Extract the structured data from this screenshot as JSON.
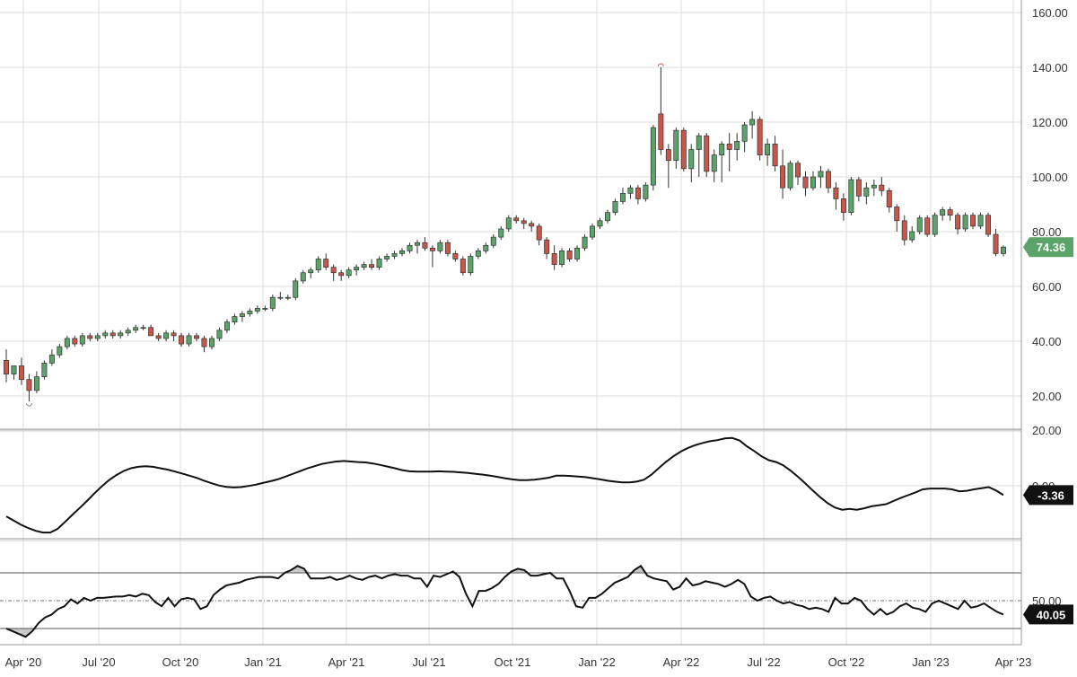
{
  "chart_data": {
    "type": "candlestick",
    "x_ticks": [
      "Apr '20",
      "Jul '20",
      "Oct '20",
      "Jan '21",
      "Apr '21",
      "Jul '21",
      "Oct '21",
      "Jan '22",
      "Apr '22",
      "Jul '22",
      "Oct '22",
      "Jan '23",
      "Apr '23"
    ],
    "price_panel": {
      "y_ticks": [
        "20.00",
        "40.00",
        "60.00",
        "80.00",
        "100.00",
        "120.00",
        "140.00",
        "160.00"
      ],
      "ylim": [
        10,
        160
      ],
      "last_value": "74.36",
      "candles": [
        [
          33,
          37,
          25,
          28
        ],
        [
          28,
          31,
          26,
          31
        ],
        [
          31,
          34,
          24,
          26
        ],
        [
          26,
          28,
          18,
          22
        ],
        [
          22,
          29,
          21,
          27
        ],
        [
          27,
          33,
          26,
          32
        ],
        [
          32,
          37,
          31,
          35
        ],
        [
          35,
          39,
          34,
          38
        ],
        [
          38,
          42,
          37,
          41
        ],
        [
          41,
          42,
          38,
          39
        ],
        [
          39,
          43,
          38,
          42
        ],
        [
          42,
          43,
          40,
          41
        ],
        [
          41,
          43,
          40,
          42
        ],
        [
          42,
          44,
          41,
          43
        ],
        [
          43,
          44,
          41,
          42
        ],
        [
          42,
          44,
          41,
          43
        ],
        [
          43,
          45,
          42,
          44
        ],
        [
          44,
          46,
          43,
          45
        ],
        [
          45,
          46,
          44,
          45
        ],
        [
          45,
          46,
          42,
          42
        ],
        [
          42,
          43,
          40,
          41
        ],
        [
          41,
          44,
          40,
          43
        ],
        [
          43,
          44,
          40,
          42
        ],
        [
          42,
          43,
          38,
          39
        ],
        [
          39,
          43,
          38,
          42
        ],
        [
          42,
          43,
          40,
          41
        ],
        [
          41,
          42,
          36,
          38
        ],
        [
          38,
          42,
          37,
          41
        ],
        [
          41,
          45,
          40,
          44
        ],
        [
          44,
          48,
          43,
          47
        ],
        [
          47,
          50,
          46,
          49
        ],
        [
          49,
          51,
          47,
          50
        ],
        [
          50,
          52,
          49,
          51
        ],
        [
          51,
          53,
          50,
          52
        ],
        [
          52,
          53,
          51,
          52
        ],
        [
          52,
          57,
          51,
          56
        ],
        [
          56,
          58,
          55,
          56
        ],
        [
          56,
          57,
          55,
          56
        ],
        [
          56,
          63,
          55,
          62
        ],
        [
          62,
          66,
          61,
          65
        ],
        [
          65,
          67,
          63,
          66
        ],
        [
          66,
          71,
          65,
          70
        ],
        [
          70,
          72,
          66,
          67
        ],
        [
          67,
          68,
          62,
          65
        ],
        [
          65,
          66,
          62,
          64
        ],
        [
          64,
          67,
          63,
          66
        ],
        [
          66,
          68,
          64,
          67
        ],
        [
          67,
          69,
          66,
          68
        ],
        [
          68,
          70,
          66,
          67
        ],
        [
          67,
          71,
          66,
          70
        ],
        [
          70,
          72,
          69,
          71
        ],
        [
          71,
          73,
          70,
          72
        ],
        [
          72,
          74,
          71,
          73
        ],
        [
          73,
          76,
          72,
          75
        ],
        [
          75,
          77,
          72,
          76
        ],
        [
          76,
          78,
          73,
          74
        ],
        [
          74,
          75,
          67,
          73
        ],
        [
          73,
          77,
          72,
          76
        ],
        [
          76,
          77,
          71,
          72
        ],
        [
          72,
          73,
          69,
          70
        ],
        [
          70,
          71,
          64,
          65
        ],
        [
          65,
          72,
          64,
          71
        ],
        [
          71,
          74,
          70,
          73
        ],
        [
          73,
          76,
          72,
          75
        ],
        [
          75,
          79,
          74,
          78
        ],
        [
          78,
          82,
          77,
          81
        ],
        [
          81,
          86,
          80,
          85
        ],
        [
          85,
          86,
          83,
          84
        ],
        [
          84,
          85,
          81,
          83
        ],
        [
          83,
          84,
          80,
          82
        ],
        [
          82,
          83,
          75,
          77
        ],
        [
          77,
          78,
          70,
          72
        ],
        [
          72,
          75,
          66,
          68
        ],
        [
          68,
          74,
          67,
          73
        ],
        [
          73,
          74,
          69,
          70
        ],
        [
          70,
          75,
          69,
          74
        ],
        [
          74,
          79,
          73,
          78
        ],
        [
          78,
          83,
          77,
          82
        ],
        [
          82,
          85,
          81,
          84
        ],
        [
          84,
          88,
          83,
          87
        ],
        [
          87,
          92,
          86,
          91
        ],
        [
          91,
          96,
          90,
          94
        ],
        [
          94,
          97,
          92,
          96
        ],
        [
          96,
          97,
          90,
          92
        ],
        [
          92,
          98,
          91,
          97
        ],
        [
          97,
          119,
          95,
          118
        ],
        [
          123,
          140,
          108,
          110
        ],
        [
          110,
          112,
          96,
          106
        ],
        [
          106,
          118,
          103,
          117
        ],
        [
          117,
          118,
          102,
          103
        ],
        [
          103,
          112,
          98,
          110
        ],
        [
          110,
          116,
          100,
          115
        ],
        [
          115,
          116,
          100,
          102
        ],
        [
          102,
          110,
          98,
          108
        ],
        [
          108,
          113,
          98,
          112
        ],
        [
          112,
          116,
          102,
          110
        ],
        [
          110,
          116,
          106,
          113
        ],
        [
          113,
          120,
          109,
          119
        ],
        [
          119,
          124,
          114,
          121
        ],
        [
          121,
          122,
          106,
          108
        ],
        [
          108,
          114,
          104,
          112
        ],
        [
          112,
          115,
          102,
          104
        ],
        [
          104,
          110,
          92,
          96
        ],
        [
          96,
          106,
          95,
          105
        ],
        [
          105,
          106,
          97,
          100
        ],
        [
          100,
          102,
          93,
          96
        ],
        [
          96,
          102,
          95,
          100
        ],
        [
          100,
          104,
          96,
          102
        ],
        [
          102,
          103,
          94,
          96
        ],
        [
          96,
          98,
          88,
          92
        ],
        [
          92,
          94,
          84,
          87
        ],
        [
          87,
          100,
          86,
          99
        ],
        [
          99,
          100,
          91,
          93
        ],
        [
          93,
          98,
          90,
          96
        ],
        [
          96,
          99,
          93,
          97
        ],
        [
          97,
          100,
          93,
          95
        ],
        [
          95,
          96,
          87,
          89
        ],
        [
          89,
          90,
          80,
          84
        ],
        [
          84,
          86,
          75,
          77
        ],
        [
          77,
          82,
          76,
          80
        ],
        [
          80,
          86,
          79,
          85
        ],
        [
          85,
          86,
          78,
          79
        ],
        [
          79,
          87,
          78,
          86
        ],
        [
          86,
          89,
          84,
          88
        ],
        [
          88,
          89,
          84,
          86
        ],
        [
          86,
          87,
          79,
          81
        ],
        [
          81,
          87,
          80,
          86
        ],
        [
          86,
          87,
          81,
          82
        ],
        [
          82,
          87,
          81,
          86
        ],
        [
          86,
          87,
          78,
          79
        ],
        [
          79,
          81,
          71,
          72
        ],
        [
          72,
          75,
          71,
          74.36
        ]
      ]
    },
    "oscillator_panel": {
      "y_ticks": [
        "20.00",
        "0.00"
      ],
      "ylim": [
        -19,
        22
      ],
      "last_value": "-3.36",
      "values": [
        -11,
        -12.5,
        -14,
        -15.2,
        -16.2,
        -16.8,
        -16.8,
        -15.5,
        -13,
        -10.5,
        -8,
        -5.5,
        -2.8,
        -0.3,
        2,
        3.8,
        5.3,
        6.3,
        6.8,
        7,
        6.8,
        6.3,
        5.8,
        5.1,
        4.4,
        3.6,
        2.8,
        1.8,
        0.9,
        0.1,
        -0.4,
        -0.6,
        -0.5,
        -0.1,
        0.4,
        1,
        1.6,
        2.3,
        3.2,
        4.2,
        5.2,
        6.2,
        7,
        7.8,
        8.3,
        8.7,
        8.9,
        8.7,
        8.5,
        8.4,
        8,
        7.5,
        6.9,
        6.3,
        5.6,
        5.2,
        5.1,
        5.1,
        5.1,
        5.2,
        5.1,
        5,
        4.8,
        4.6,
        4.3,
        4,
        3.6,
        3.2,
        2.7,
        2.3,
        2,
        2,
        2.2,
        2.5,
        2.9,
        3.6,
        3.6,
        3.5,
        3.3,
        3.1,
        2.7,
        2.3,
        1.8,
        1.5,
        1.2,
        1.2,
        1.5,
        2.2,
        4,
        6.4,
        8.6,
        10.6,
        12.3,
        13.6,
        14.6,
        15.4,
        16,
        16.4,
        17,
        17.2,
        16.3,
        14.2,
        12.5,
        10.6,
        9.2,
        8.5,
        7.3,
        5.4,
        3.2,
        0.8,
        -1.7,
        -4.1,
        -6.2,
        -7.8,
        -8.6,
        -8.3,
        -8.6,
        -8.1,
        -7.4,
        -7,
        -6.6,
        -5.5,
        -4.4,
        -3.4,
        -2.4,
        -1.3,
        -1,
        -1,
        -1,
        -1.3,
        -2,
        -1.8,
        -1.3,
        -0.9,
        -0.5,
        -1.7,
        -3.36
      ]
    },
    "rsi_panel": {
      "y_ticks": [
        "50.00"
      ],
      "ylim": [
        15,
        98
      ],
      "upper_line": 70,
      "lower_line": 30,
      "mid_line": 50,
      "last_value": "40.05",
      "values": [
        30,
        28,
        26,
        24,
        28,
        34,
        38,
        40,
        44,
        46,
        51,
        48,
        52,
        50,
        52,
        52,
        52.5,
        53,
        53,
        54,
        53,
        55,
        54,
        49,
        46,
        52,
        46,
        51,
        52,
        51,
        44,
        46,
        54,
        58,
        61,
        62,
        63,
        65,
        66,
        67,
        67,
        67,
        66,
        70,
        72,
        75,
        73,
        66,
        66,
        66,
        67,
        65,
        66,
        68,
        66,
        65,
        67,
        68,
        66,
        68,
        69,
        68,
        68,
        66,
        66,
        60,
        68,
        67,
        69,
        71,
        67,
        55,
        46,
        57,
        57,
        59,
        62,
        67,
        71,
        73,
        72,
        68,
        68,
        69,
        70,
        66,
        66,
        57,
        46,
        45,
        52,
        52,
        55,
        59,
        63,
        65,
        67,
        72,
        75,
        68,
        66,
        65,
        64,
        58,
        60,
        66,
        61,
        62,
        64,
        63,
        62,
        60,
        62,
        65,
        62,
        53,
        50,
        52,
        53,
        50,
        48,
        49,
        47,
        46,
        44,
        45,
        44,
        42,
        52,
        48,
        48,
        52,
        50,
        44,
        40,
        44,
        40,
        42,
        46,
        48,
        45,
        44,
        42,
        48,
        50,
        48,
        46,
        44,
        50,
        45,
        46,
        48,
        45,
        42,
        40.05
      ]
    }
  }
}
